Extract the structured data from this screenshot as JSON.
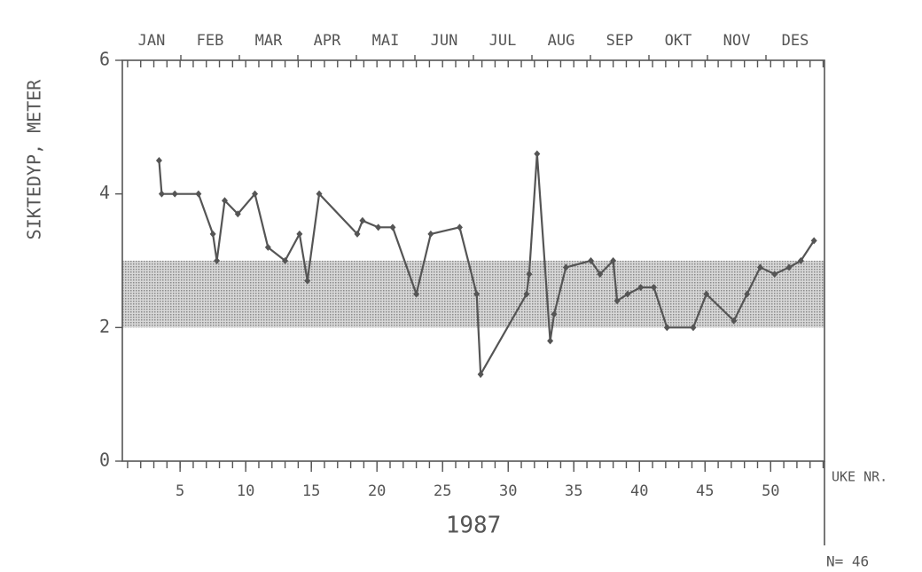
{
  "chart_data": {
    "type": "line",
    "y_label": "SIKTEDYP, METER",
    "x_label": "1987",
    "x_unit_label": "UKE NR.",
    "n_label": "N= 46",
    "months": [
      "JAN",
      "FEB",
      "MAR",
      "APR",
      "MAI",
      "JUN",
      "JUL",
      "AUG",
      "SEP",
      "OKT",
      "NOV",
      "DES"
    ],
    "x": [
      3.4,
      3.6,
      4.6,
      6.4,
      7.5,
      7.8,
      8.4,
      9.4,
      10.7,
      11.7,
      13.0,
      14.1,
      14.7,
      15.6,
      18.5,
      18.9,
      20.1,
      21.2,
      23.0,
      24.1,
      26.3,
      27.6,
      27.9,
      31.4,
      31.6,
      32.2,
      33.2,
      33.5,
      34.4,
      36.3,
      37.0,
      38.0,
      38.3,
      39.1,
      40.1,
      41.1,
      42.1,
      44.1,
      45.1,
      47.2,
      48.2,
      49.2,
      50.3,
      51.4,
      52.3,
      53.3
    ],
    "values": [
      4.5,
      4.0,
      4.0,
      4.0,
      3.4,
      3.0,
      3.9,
      3.7,
      4.0,
      3.2,
      3.0,
      3.4,
      2.7,
      4.0,
      3.4,
      3.6,
      3.5,
      3.5,
      2.5,
      3.4,
      3.5,
      2.5,
      1.3,
      2.5,
      2.8,
      4.6,
      1.8,
      2.2,
      2.9,
      3.0,
      2.8,
      3.0,
      2.4,
      2.5,
      2.6,
      2.6,
      2.0,
      2.0,
      2.5,
      2.1,
      2.5,
      2.9,
      2.8,
      2.9,
      3.0,
      3.3
    ],
    "color": "#555555",
    "band": [
      2,
      3
    ],
    "band_color": "#bdbdbd",
    "xlim": [
      0.6,
      54.1
    ],
    "xticks": [
      5,
      10,
      15,
      20,
      25,
      30,
      35,
      40,
      45,
      50
    ],
    "xminor_ticks": [
      1,
      2,
      3,
      4,
      5,
      6,
      7,
      8,
      9,
      10,
      11,
      12,
      13,
      14,
      15,
      16,
      17,
      18,
      19,
      20,
      21,
      22,
      23,
      24,
      25,
      26,
      27,
      28,
      29,
      30,
      31,
      32,
      33,
      34,
      35,
      36,
      37,
      38,
      39,
      40,
      41,
      42,
      43,
      44,
      45,
      46,
      47,
      48,
      49,
      50,
      51,
      52,
      53,
      54
    ],
    "ylim": [
      0,
      6
    ],
    "yticks": [
      0,
      2,
      4,
      6
    ]
  }
}
